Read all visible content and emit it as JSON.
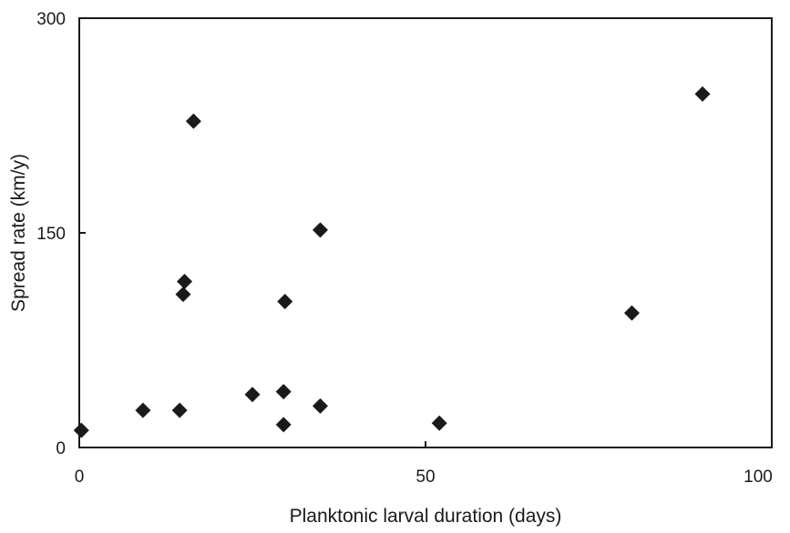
{
  "chart_data": {
    "type": "scatter",
    "title": "",
    "xlabel": "Planktonic larval duration (days)",
    "ylabel": "Spread rate (km/y)",
    "xlim": [
      0,
      100
    ],
    "ylim": [
      0,
      300
    ],
    "xticks": [
      0,
      50,
      100
    ],
    "yticks": [
      0,
      150,
      300
    ],
    "xtick_labels": [
      "0",
      "50",
      "100"
    ],
    "ytick_labels": [
      "0",
      "150",
      "300"
    ],
    "grid": false,
    "marker": "diamond",
    "marker_color": "#1a1a1a",
    "series": [
      {
        "points": [
          {
            "x": 0.3,
            "y": 12
          },
          {
            "x": 9.2,
            "y": 26
          },
          {
            "x": 14.5,
            "y": 26
          },
          {
            "x": 15.0,
            "y": 107
          },
          {
            "x": 15.2,
            "y": 116
          },
          {
            "x": 16.5,
            "y": 228
          },
          {
            "x": 25.0,
            "y": 37
          },
          {
            "x": 29.5,
            "y": 16
          },
          {
            "x": 29.5,
            "y": 39
          },
          {
            "x": 29.7,
            "y": 102
          },
          {
            "x": 34.8,
            "y": 29
          },
          {
            "x": 34.8,
            "y": 152
          },
          {
            "x": 52.0,
            "y": 17
          },
          {
            "x": 79.8,
            "y": 94
          },
          {
            "x": 90.0,
            "y": 247
          }
        ]
      }
    ]
  }
}
